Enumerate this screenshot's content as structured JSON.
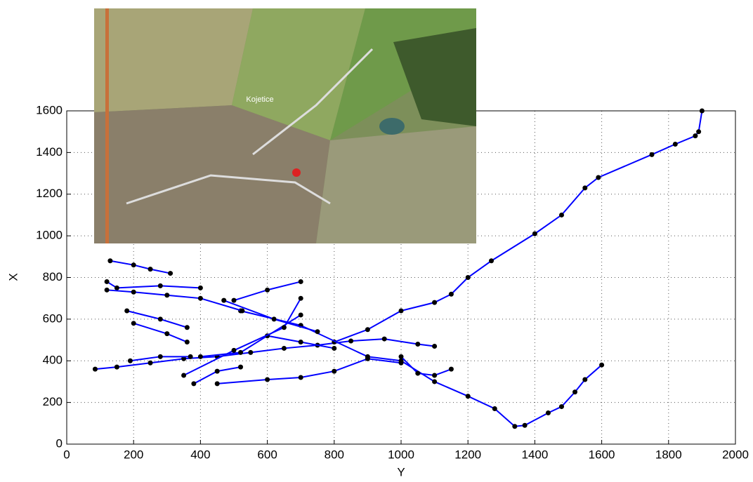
{
  "chart_data": {
    "type": "line",
    "xlabel": "Y",
    "ylabel": "X",
    "xlim": [
      0,
      2000
    ],
    "ylim": [
      0,
      1600
    ],
    "xticks": [
      0,
      200,
      400,
      600,
      800,
      1000,
      1200,
      1400,
      1600,
      1800,
      2000
    ],
    "yticks": [
      0,
      200,
      400,
      600,
      800,
      1000,
      1200,
      1400,
      1600
    ],
    "grid": true,
    "series": [
      {
        "color": "#0000ff",
        "x": [
          85,
          150,
          250,
          350,
          450,
          550,
          650,
          750,
          850,
          950,
          1050,
          1100
        ],
        "y": [
          360,
          370,
          390,
          410,
          420,
          440,
          460,
          475,
          495,
          505,
          480,
          470
        ]
      },
      {
        "color": "#0000ff",
        "x": [
          800,
          900,
          1000,
          1100,
          1150,
          1200,
          1270,
          1400,
          1480,
          1550,
          1590,
          1750,
          1820,
          1880,
          1890,
          1900
        ],
        "y": [
          490,
          550,
          640,
          680,
          720,
          800,
          880,
          1010,
          1100,
          1230,
          1280,
          1390,
          1440,
          1480,
          1500,
          1600
        ]
      },
      {
        "color": "#0000ff",
        "x": [
          520,
          700,
          900,
          1000,
          1100,
          1200,
          1280,
          1340,
          1370,
          1440,
          1480,
          1520,
          1550,
          1600
        ],
        "y": [
          640,
          570,
          420,
          400,
          300,
          230,
          170,
          85,
          90,
          150,
          180,
          250,
          310,
          380
        ]
      },
      {
        "color": "#0000ff",
        "x": [
          1000,
          1050,
          1100,
          1150
        ],
        "y": [
          420,
          340,
          330,
          360
        ]
      },
      {
        "color": "#0000ff",
        "x": [
          130,
          200,
          250,
          310
        ],
        "y": [
          880,
          860,
          840,
          820
        ]
      },
      {
        "color": "#0000ff",
        "x": [
          120,
          150,
          280,
          400
        ],
        "y": [
          780,
          750,
          760,
          750
        ]
      },
      {
        "color": "#0000ff",
        "x": [
          120,
          200,
          300,
          400,
          525
        ],
        "y": [
          740,
          730,
          715,
          700,
          640
        ]
      },
      {
        "color": "#0000ff",
        "x": [
          180,
          280,
          360
        ],
        "y": [
          640,
          600,
          560
        ]
      },
      {
        "color": "#0000ff",
        "x": [
          200,
          300,
          360
        ],
        "y": [
          580,
          530,
          490
        ]
      },
      {
        "color": "#0000ff",
        "x": [
          190,
          280,
          370
        ],
        "y": [
          400,
          420,
          420
        ]
      },
      {
        "color": "#0000ff",
        "x": [
          470,
          620,
          750
        ],
        "y": [
          690,
          600,
          540
        ]
      },
      {
        "color": "#0000ff",
        "x": [
          450,
          600,
          700,
          800,
          900,
          1000
        ],
        "y": [
          290,
          310,
          320,
          350,
          410,
          390
        ]
      },
      {
        "color": "#0000ff",
        "x": [
          380,
          450,
          520
        ],
        "y": [
          290,
          350,
          370
        ]
      },
      {
        "color": "#0000ff",
        "x": [
          400,
          520,
          700
        ],
        "y": [
          420,
          440,
          620
        ]
      },
      {
        "color": "#0000ff",
        "x": [
          500,
          600,
          700
        ],
        "y": [
          690,
          740,
          780
        ]
      },
      {
        "color": "#0000ff",
        "x": [
          600,
          700,
          800
        ],
        "y": [
          520,
          490,
          460
        ]
      },
      {
        "color": "#0000ff",
        "x": [
          350,
          500,
          650,
          700
        ],
        "y": [
          330,
          450,
          560,
          700
        ]
      }
    ]
  },
  "inset_label": "Kojetice"
}
